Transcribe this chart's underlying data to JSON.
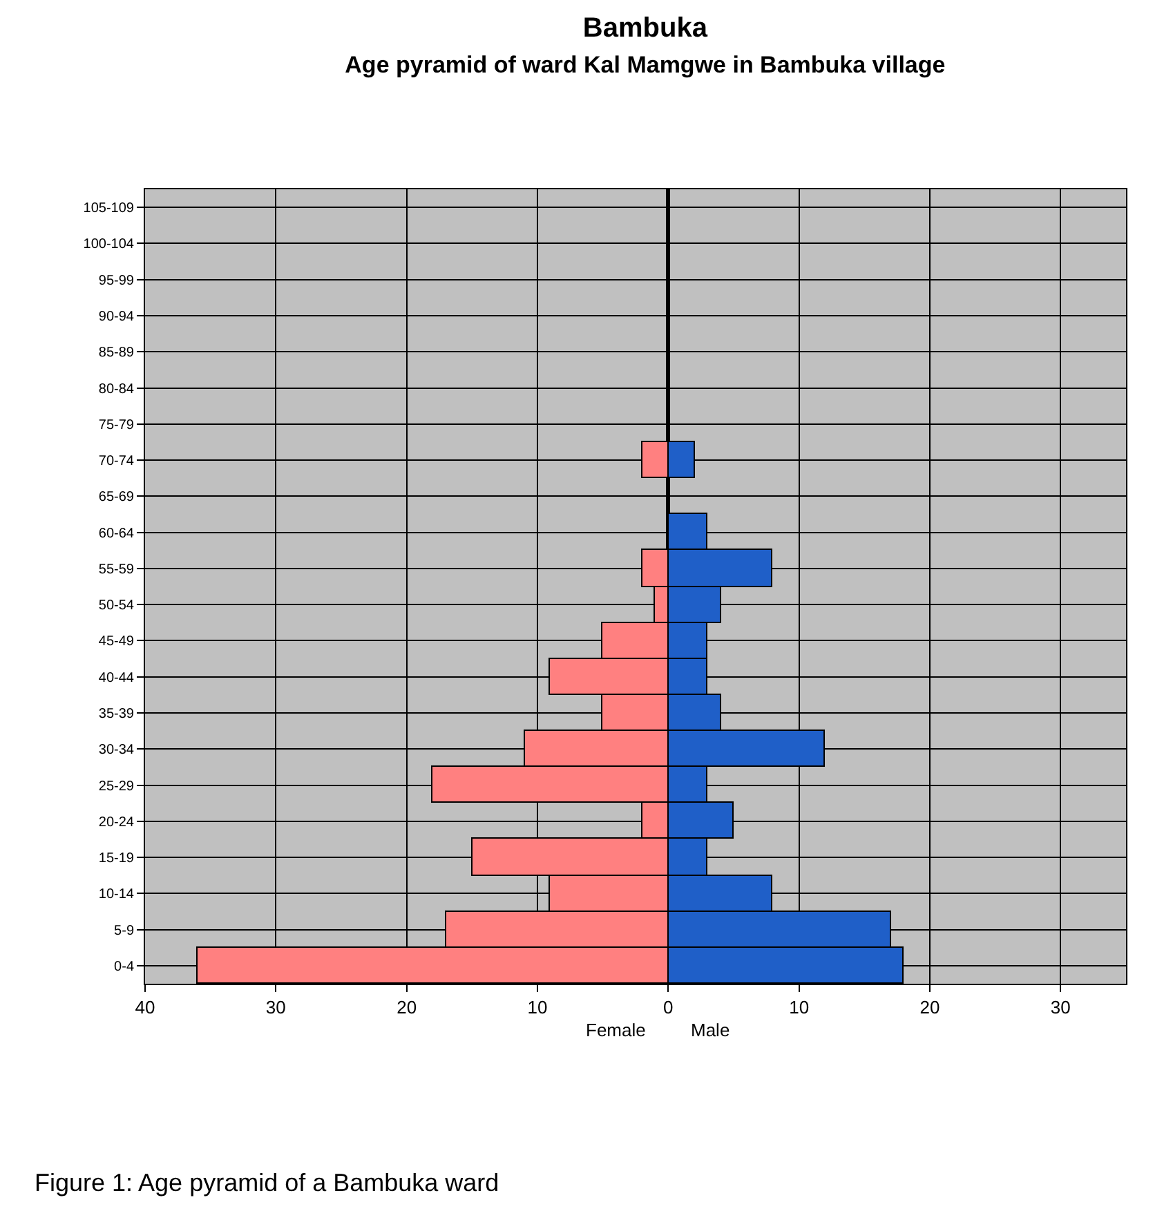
{
  "chart_data": {
    "type": "bar",
    "orientation": "horizontal",
    "stacked": true,
    "title": "Bambuka",
    "subtitle": "Age pyramid of ward Kal Mamgwe in Bambuka village",
    "categories": [
      "105-109",
      "100-104",
      "95-99",
      "90-94",
      "85-89",
      "80-84",
      "75-79",
      "70-74",
      "65-69",
      "60-64",
      "55-59",
      "50-54",
      "45-49",
      "40-44",
      "35-39",
      "30-34",
      "25-29",
      "20-24",
      "15-19",
      "10-14",
      "5-9",
      "0-4"
    ],
    "series": [
      {
        "name": "Female",
        "color": "#ff8080",
        "values": [
          0,
          0,
          0,
          0,
          0,
          0,
          0,
          -2,
          0,
          0,
          -2,
          -1,
          -5,
          -9,
          -5,
          -11,
          -18,
          -2,
          -15,
          -9,
          -17,
          -36
        ]
      },
      {
        "name": "Male",
        "color": "#1f5fc8",
        "values": [
          0,
          0,
          0,
          0,
          0,
          0,
          0,
          2,
          0,
          3,
          8,
          4,
          3,
          3,
          4,
          12,
          3,
          5,
          3,
          8,
          17,
          18
        ]
      }
    ],
    "xlim": [
      -40,
      35
    ],
    "xticks": [
      {
        "value": -40,
        "label": "40"
      },
      {
        "value": -30,
        "label": "30"
      },
      {
        "value": -20,
        "label": "20"
      },
      {
        "value": -10,
        "label": "10"
      },
      0,
      10,
      20,
      30
    ],
    "grid": true,
    "legend": false,
    "annotations": [
      "Figure 1: Age pyramid of a Bambuka ward"
    ]
  }
}
